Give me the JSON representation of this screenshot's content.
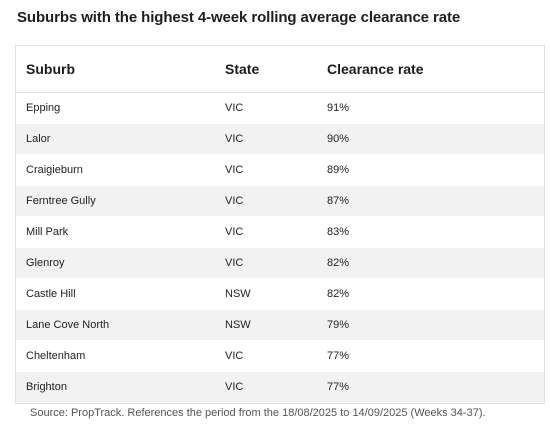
{
  "title": "Suburbs with the highest 4-week rolling average clearance rate",
  "table": {
    "headers": [
      "Suburb",
      "State",
      "Clearance rate"
    ],
    "rows": [
      {
        "suburb": "Epping",
        "state": "VIC",
        "rate": "91%"
      },
      {
        "suburb": "Lalor",
        "state": "VIC",
        "rate": "90%"
      },
      {
        "suburb": "Craigieburn",
        "state": "VIC",
        "rate": "89%"
      },
      {
        "suburb": "Ferntree Gully",
        "state": "VIC",
        "rate": "87%"
      },
      {
        "suburb": "Mill Park",
        "state": "VIC",
        "rate": "83%"
      },
      {
        "suburb": "Glenroy",
        "state": "VIC",
        "rate": "82%"
      },
      {
        "suburb": "Castle Hill",
        "state": "NSW",
        "rate": "82%"
      },
      {
        "suburb": "Lane Cove North",
        "state": "NSW",
        "rate": "79%"
      },
      {
        "suburb": "Cheltenham",
        "state": "VIC",
        "rate": "77%"
      },
      {
        "suburb": "Brighton",
        "state": "VIC",
        "rate": "77%"
      }
    ]
  },
  "source": "Source: PropTrack. References the period from the 18/08/2025 to 14/09/2025 (Weeks 34-37).",
  "colors": {
    "header_border": "#e4e4e4",
    "stripe": "#f2f2f2",
    "frame_border": "#e1e1e1"
  }
}
